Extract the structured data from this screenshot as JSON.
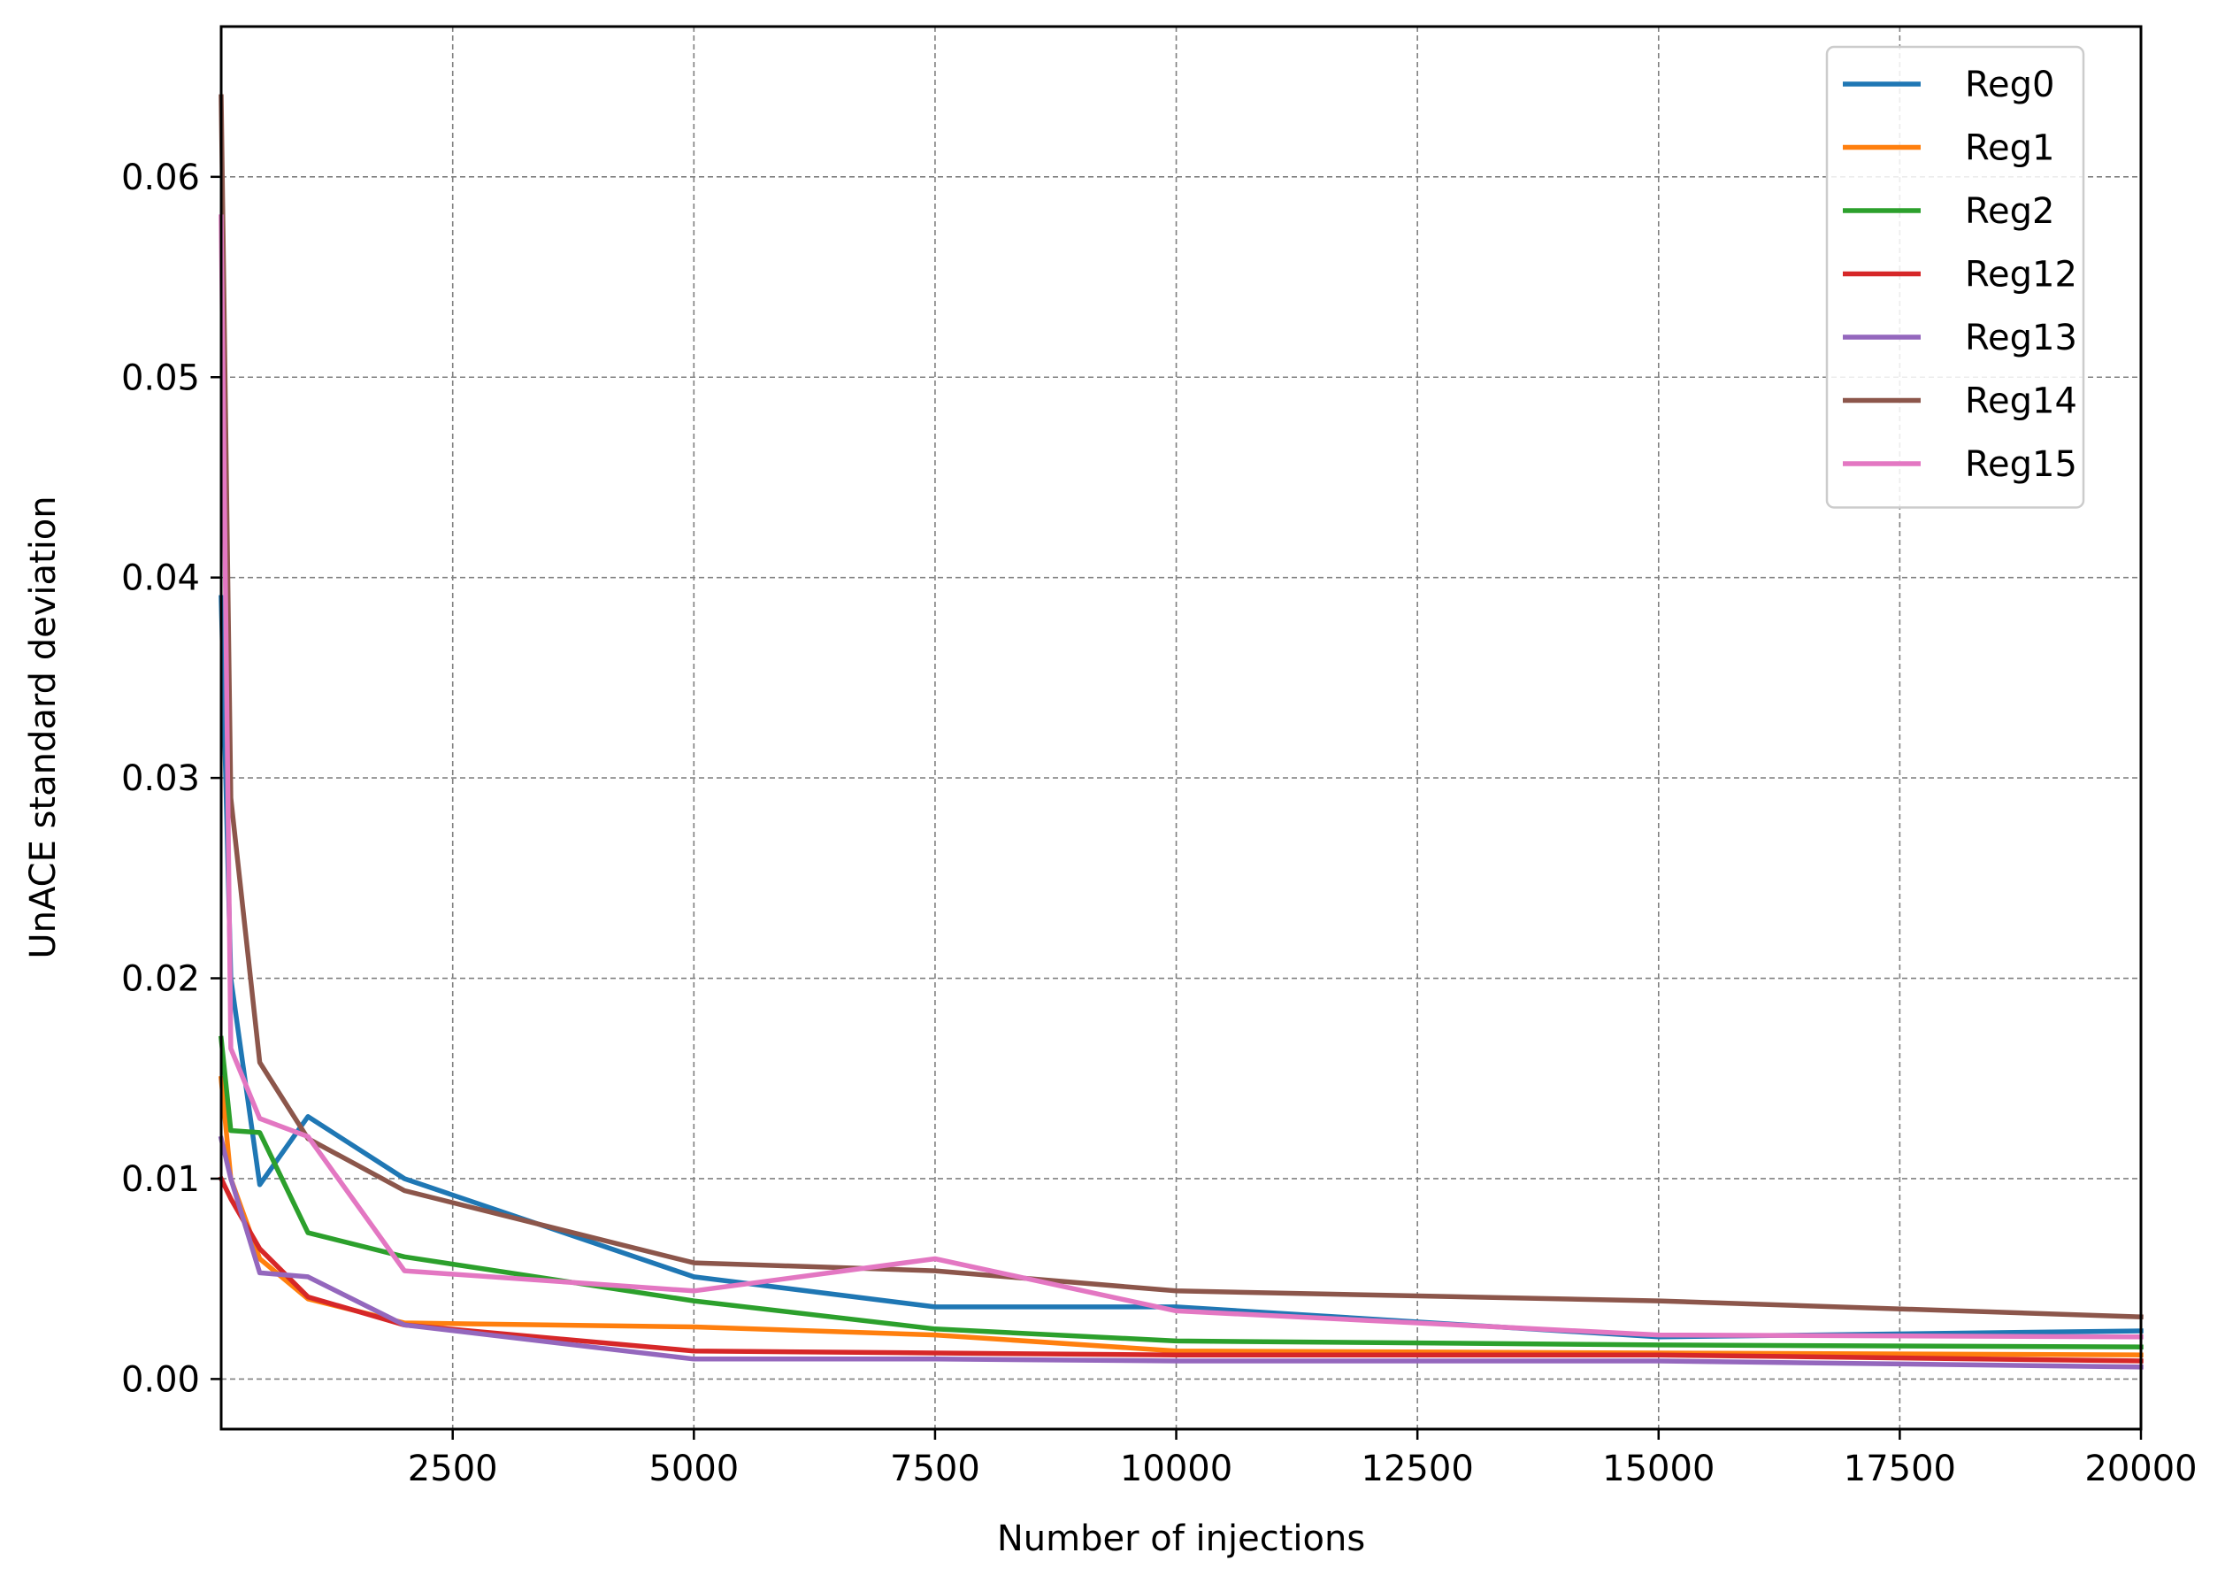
{
  "chart_data": {
    "type": "line",
    "title": "",
    "xlabel": "Number of injections",
    "ylabel": "UnACE standard deviation",
    "xlim": [
      100,
      20000
    ],
    "ylim": [
      -0.0025,
      0.0675
    ],
    "x_ticks": [
      2500,
      5000,
      7500,
      10000,
      12500,
      15000,
      17500,
      20000
    ],
    "y_ticks": [
      0.0,
      0.01,
      0.02,
      0.03,
      0.04,
      0.05,
      0.06
    ],
    "x_tick_labels": [
      "2500",
      "5000",
      "7500",
      "10000",
      "12500",
      "15000",
      "17500",
      "20000"
    ],
    "y_tick_labels": [
      "0.00",
      "0.01",
      "0.02",
      "0.03",
      "0.04",
      "0.05",
      "0.06"
    ],
    "grid": true,
    "legend_position": "top-right",
    "x": [
      100,
      200,
      500,
      1000,
      2000,
      5000,
      7500,
      10000,
      15000,
      20000
    ],
    "series": [
      {
        "name": "Reg0",
        "color": "#1f77b4",
        "values": [
          0.039,
          0.02,
          0.0097,
          0.0131,
          0.01,
          0.0051,
          0.0036,
          0.0036,
          0.0021,
          0.0024
        ]
      },
      {
        "name": "Reg1",
        "color": "#ff7f0e",
        "values": [
          0.015,
          0.01,
          0.006,
          0.004,
          0.0028,
          0.0026,
          0.0022,
          0.0014,
          0.0013,
          0.0012
        ]
      },
      {
        "name": "Reg2",
        "color": "#2ca02c",
        "values": [
          0.017,
          0.0124,
          0.0123,
          0.0073,
          0.0061,
          0.0039,
          0.0025,
          0.0019,
          0.0017,
          0.0016
        ]
      },
      {
        "name": "Reg12",
        "color": "#d62728",
        "values": [
          0.01,
          0.009,
          0.0065,
          0.0041,
          0.0027,
          0.0014,
          0.0013,
          0.0012,
          0.0012,
          0.0009
        ]
      },
      {
        "name": "Reg13",
        "color": "#9467bd",
        "values": [
          0.012,
          0.01,
          0.0053,
          0.0051,
          0.0027,
          0.001,
          0.001,
          0.0009,
          0.0009,
          0.0006
        ]
      },
      {
        "name": "Reg14",
        "color": "#8c564b",
        "values": [
          0.064,
          0.029,
          0.0158,
          0.012,
          0.0094,
          0.0058,
          0.0054,
          0.0044,
          0.0039,
          0.0031
        ]
      },
      {
        "name": "Reg15",
        "color": "#e377c2",
        "values": [
          0.058,
          0.0165,
          0.013,
          0.0121,
          0.0054,
          0.0044,
          0.006,
          0.0034,
          0.0022,
          0.0021
        ]
      }
    ]
  }
}
